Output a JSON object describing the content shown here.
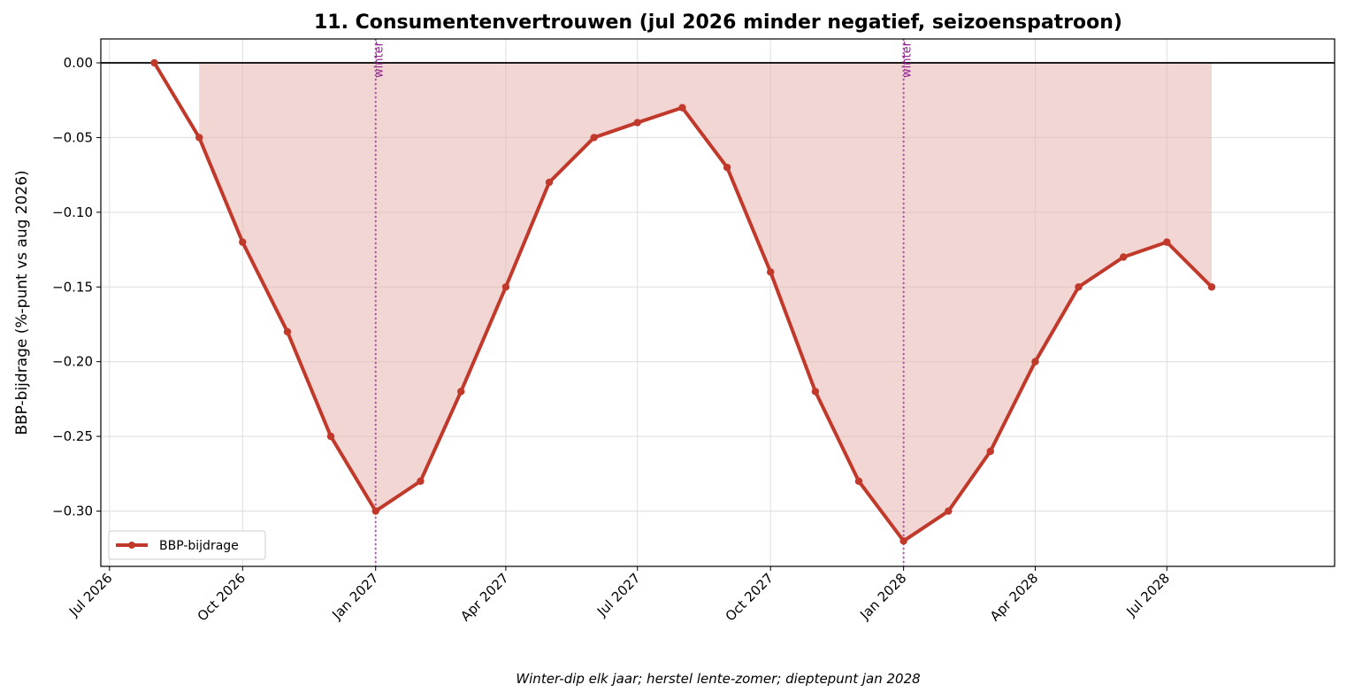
{
  "chart_data": {
    "type": "line",
    "title": "11. Consumentenvertrouwen (jul 2026 minder negatief, seizoenspatroon)",
    "ylabel": "BBP-bijdrage (%-punt vs aug 2026)",
    "xlabel": "",
    "caption": "Winter-dip elk jaar; herstel lente-zomer; dieptepunt jan 2028",
    "ylim": [
      -0.337,
      0.016
    ],
    "xlim": [
      "2026-06-25",
      "2028-10-25"
    ],
    "y_ticks": [
      0.0,
      -0.05,
      -0.1,
      -0.15,
      -0.2,
      -0.25,
      -0.3
    ],
    "y_tick_labels": [
      "0.00",
      "−0.05",
      "−0.10",
      "−0.15",
      "−0.20",
      "−0.25",
      "−0.30"
    ],
    "x_ticks": [
      "2026-07-01",
      "2026-10-01",
      "2027-01-01",
      "2027-04-01",
      "2027-07-01",
      "2027-10-01",
      "2028-01-01",
      "2028-04-01",
      "2028-07-01"
    ],
    "x_tick_labels": [
      "Jul 2026",
      "Oct 2026",
      "Jan 2027",
      "Apr 2027",
      "Jul 2027",
      "Oct 2027",
      "Jan 2028",
      "Apr 2028",
      "Jul 2028"
    ],
    "grid": true,
    "legend_position": "lower-left",
    "series": [
      {
        "name": "BBP-bijdrage",
        "color": "#c0392b",
        "fill_color": "#e8b4b0",
        "x": [
          "2026-08-01",
          "2026-09-01",
          "2026-10-01",
          "2026-11-01",
          "2026-12-01",
          "2027-01-01",
          "2027-02-01",
          "2027-03-01",
          "2027-04-01",
          "2027-05-01",
          "2027-06-01",
          "2027-07-01",
          "2027-08-01",
          "2027-09-01",
          "2027-10-01",
          "2027-11-01",
          "2027-12-01",
          "2028-01-01",
          "2028-02-01",
          "2028-03-01",
          "2028-04-01",
          "2028-05-01",
          "2028-06-01",
          "2028-07-01",
          "2028-08-01"
        ],
        "values": [
          0.0,
          -0.05,
          -0.12,
          -0.18,
          -0.25,
          -0.3,
          -0.28,
          -0.22,
          -0.15,
          -0.08,
          -0.05,
          -0.04,
          -0.03,
          -0.07,
          -0.14,
          -0.22,
          -0.28,
          -0.32,
          -0.3,
          -0.26,
          -0.2,
          -0.15,
          -0.13,
          -0.12,
          -0.15
        ]
      }
    ],
    "reference_line": {
      "y": 0.0,
      "color": "#000000"
    },
    "annotations": [
      {
        "x": "2027-01-01",
        "text": "winter",
        "color": "#8e1f8e"
      },
      {
        "x": "2028-01-01",
        "text": "winter",
        "color": "#8e1f8e"
      }
    ]
  }
}
